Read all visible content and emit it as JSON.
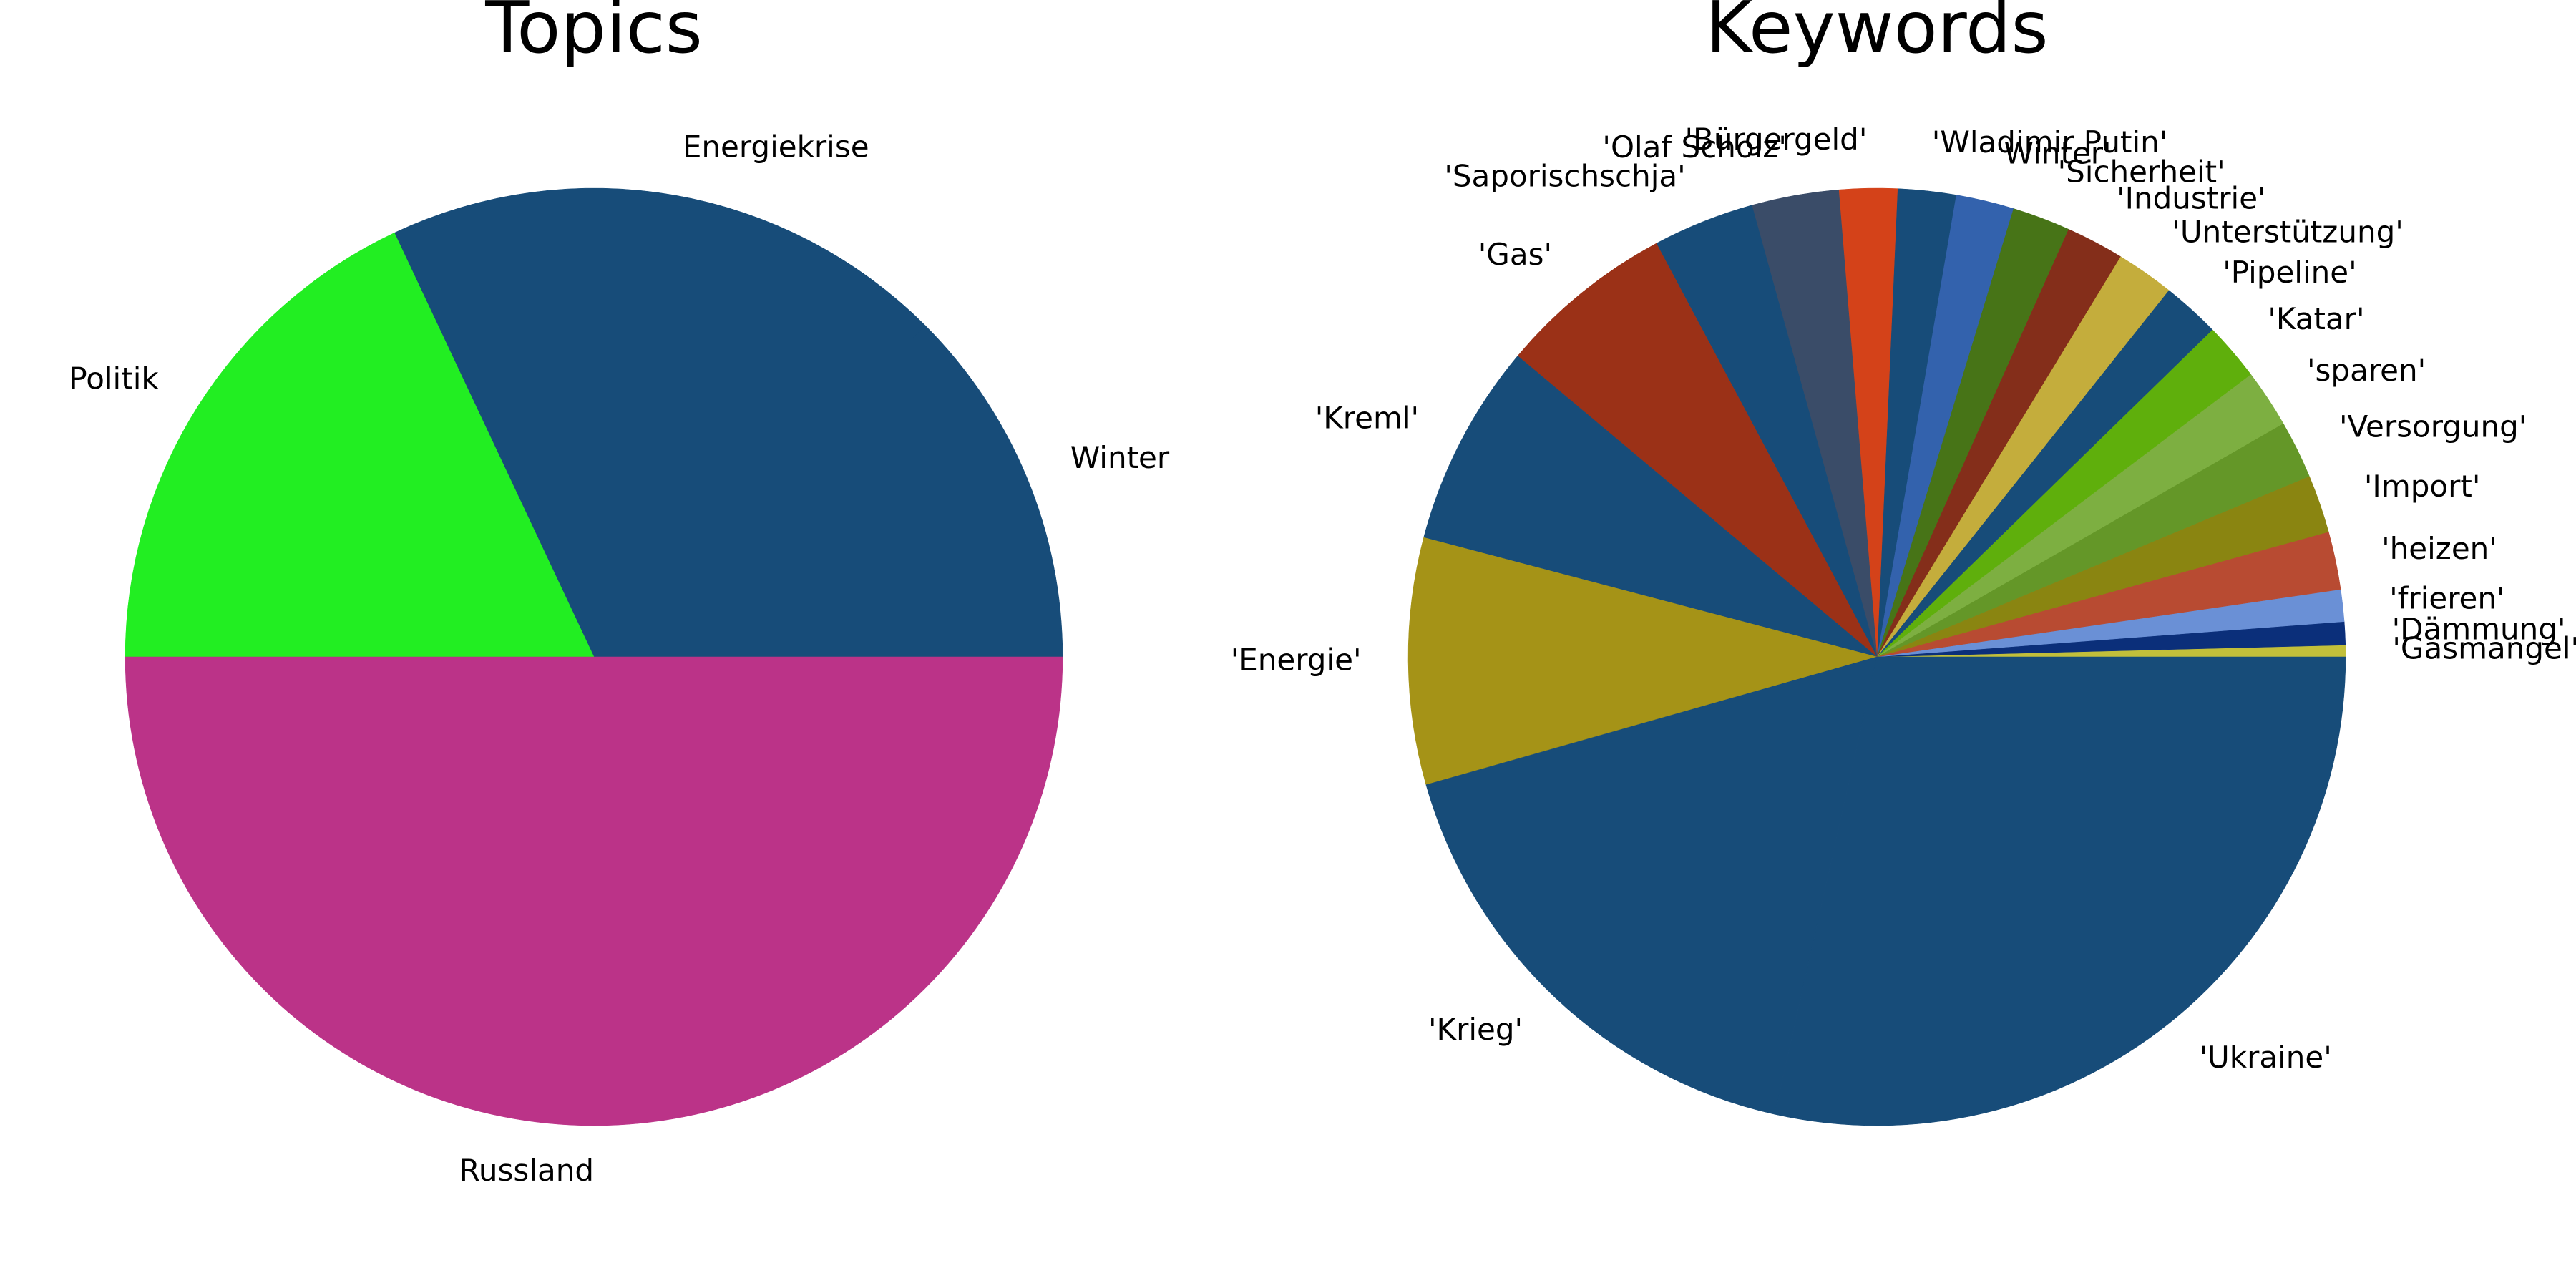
{
  "chart_data": [
    {
      "type": "pie",
      "title": "Topics",
      "slices": [
        {
          "label": "Winter",
          "value": 12.5,
          "color": "#174c79"
        },
        {
          "label": "Energiekrise",
          "value": 19.5,
          "color": "#174c79"
        },
        {
          "label": "Politik",
          "value": 18.0,
          "color": "#22ee22"
        },
        {
          "label": "Russland",
          "value": 50.0,
          "color": "#bb3388"
        }
      ]
    },
    {
      "type": "pie",
      "title": "Keywords",
      "slices": [
        {
          "label": "'Gasmangel'",
          "value": 0.4,
          "color": "#c2bf3a"
        },
        {
          "label": "'Dämmung'",
          "value": 0.8,
          "color": "#0b2f7a"
        },
        {
          "label": "'frieren'",
          "value": 1.1,
          "color": "#6a90d6"
        },
        {
          "label": "'heizen'",
          "value": 2.0,
          "color": "#b84b32"
        },
        {
          "label": "'Import'",
          "value": 2.0,
          "color": "#8a8511"
        },
        {
          "label": "'Versorgung'",
          "value": 2.0,
          "color": "#649728"
        },
        {
          "label": "'sparen'",
          "value": 2.0,
          "color": "#7daf41"
        },
        {
          "label": "'Katar'",
          "value": 2.0,
          "color": "#5faf0c"
        },
        {
          "label": "'Pipeline'",
          "value": 2.0,
          "color": "#174c79"
        },
        {
          "label": "'Unterstützung'",
          "value": 2.0,
          "color": "#c4ad3c"
        },
        {
          "label": "'Industrie'",
          "value": 2.0,
          "color": "#842e1a"
        },
        {
          "label": "'Sicherheit'",
          "value": 2.0,
          "color": "#477417"
        },
        {
          "label": "'Winter'",
          "value": 2.0,
          "color": "#3362ad"
        },
        {
          "label": "'Wladimir Putin'",
          "value": 2.0,
          "color": "#174c79"
        },
        {
          "label": "'Bürgergeld'",
          "value": 2.0,
          "color": "#d44219"
        },
        {
          "label": "'Olaf Scholz'",
          "value": 3.0,
          "color": "#3a4c68"
        },
        {
          "label": "'Saporischschja'",
          "value": 3.5,
          "color": "#174c79"
        },
        {
          "label": "'Gas'",
          "value": 6.1,
          "color": "#9b3117"
        },
        {
          "label": "'Kreml'",
          "value": 7.0,
          "color": "#174c79"
        },
        {
          "label": "'Energie'",
          "value": 8.5,
          "color": "#a59317"
        },
        {
          "label": "'Krieg'",
          "value": 17.1,
          "color": "#174c79"
        },
        {
          "label": "'Ukraine'",
          "value": 28.5,
          "color": "#174c79"
        }
      ]
    }
  ]
}
